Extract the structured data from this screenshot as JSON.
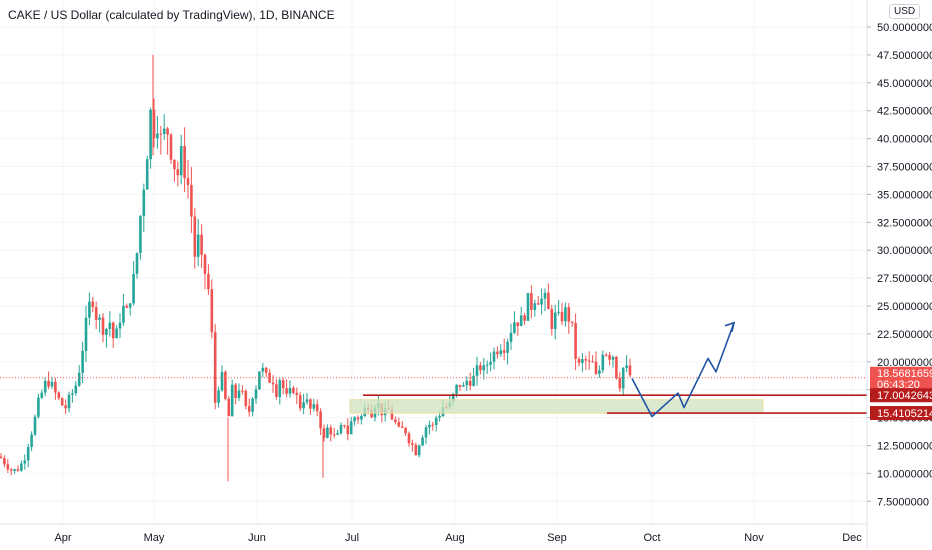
{
  "title": "CAKE / US Dollar (calculated by TradingView), 1D, BINANCE",
  "currency_badge": "USD",
  "colors": {
    "up": "#26a69a",
    "down": "#ef5350",
    "drawn_line": "#b71c1c",
    "forecast": "#1e53a6",
    "zone": "#cfe3bf",
    "price_tag": "#ef5350",
    "level_tag": "#b71c1c"
  },
  "price_tags": {
    "current": "18.5681659",
    "countdown": "06:43:20",
    "level_1": "17.0042643",
    "level_2": "15.4105214"
  },
  "chart_data": {
    "type": "candlestick",
    "title": "CAKE / US Dollar (calculated by TradingView), 1D, BINANCE",
    "xlabel": "",
    "ylabel": "USD",
    "ylim": [
      5.0,
      51.5
    ],
    "y_ticks": [
      "50.0000000",
      "47.5000000",
      "45.0000000",
      "42.5000000",
      "40.0000000",
      "37.5000000",
      "35.0000000",
      "32.5000000",
      "30.0000000",
      "27.5000000",
      "25.0000000",
      "22.5000000",
      "20.0000000",
      "17.5000000",
      "15.0000000",
      "12.5000000",
      "10.0000000",
      "7.5000000"
    ],
    "x_ticks": [
      "Apr",
      "May",
      "Jun",
      "Jul",
      "Aug",
      "Sep",
      "Oct",
      "Nov",
      "Dec"
    ],
    "current_price": 18.5681659,
    "horizontal_levels": [
      17.0042643,
      15.4105214
    ],
    "support_zone": [
      15.4,
      16.6
    ],
    "close_path": [
      [
        0,
        11.5
      ],
      [
        6,
        10.8
      ],
      [
        12,
        10.2
      ],
      [
        18,
        10.4
      ],
      [
        24,
        11.2
      ],
      [
        28,
        12.6
      ],
      [
        34,
        14.5
      ],
      [
        38,
        16.2
      ],
      [
        43,
        17.5
      ],
      [
        47,
        18.4
      ],
      [
        51,
        18.0
      ],
      [
        55,
        17.2
      ],
      [
        60,
        16.4
      ],
      [
        65,
        15.8
      ],
      [
        70,
        16.8
      ],
      [
        75,
        17.6
      ],
      [
        79,
        19.2
      ],
      [
        83,
        21.5
      ],
      [
        88,
        24.5
      ],
      [
        92,
        26.0
      ],
      [
        96,
        24.2
      ],
      [
        101,
        23.4
      ],
      [
        105,
        22.8
      ],
      [
        110,
        23.6
      ],
      [
        114,
        21.8
      ],
      [
        118,
        22.8
      ],
      [
        122,
        25.2
      ],
      [
        126,
        24.0
      ],
      [
        130,
        25.8
      ],
      [
        134,
        27.5
      ],
      [
        138,
        30.5
      ],
      [
        142,
        34.8
      ],
      [
        146,
        37.5
      ],
      [
        150,
        42.5
      ],
      [
        154,
        41.0
      ],
      [
        158,
        41.8
      ],
      [
        162,
        39.0
      ],
      [
        166,
        41.5
      ],
      [
        170,
        39.5
      ],
      [
        174,
        37.8
      ],
      [
        178,
        36.8
      ],
      [
        182,
        38.8
      ],
      [
        186,
        36.5
      ],
      [
        190,
        35.2
      ],
      [
        194,
        29.2
      ],
      [
        198,
        31.0
      ],
      [
        202,
        28.5
      ],
      [
        206,
        27.8
      ],
      [
        210,
        25.5
      ],
      [
        213,
        20.2
      ],
      [
        216,
        15.0
      ],
      [
        220,
        19.5
      ],
      [
        224,
        17.6
      ],
      [
        228,
        14.5
      ],
      [
        232,
        17.5
      ],
      [
        236,
        16.8
      ],
      [
        240,
        18.0
      ],
      [
        244,
        16.3
      ],
      [
        248,
        15.0
      ],
      [
        252,
        17.0
      ],
      [
        256,
        17.8
      ],
      [
        260,
        19.6
      ],
      [
        264,
        19.0
      ],
      [
        268,
        18.2
      ],
      [
        272,
        18.8
      ],
      [
        276,
        17.2
      ],
      [
        280,
        18.6
      ],
      [
        284,
        17.4
      ],
      [
        288,
        16.4
      ],
      [
        292,
        18.0
      ],
      [
        296,
        17.0
      ],
      [
        300,
        16.0
      ],
      [
        304,
        16.8
      ],
      [
        308,
        16.2
      ],
      [
        312,
        15.4
      ],
      [
        316,
        16.2
      ],
      [
        320,
        14.6
      ],
      [
        324,
        13.0
      ],
      [
        328,
        14.2
      ],
      [
        332,
        13.6
      ],
      [
        336,
        13.0
      ],
      [
        340,
        13.8
      ],
      [
        344,
        14.6
      ],
      [
        348,
        13.6
      ],
      [
        352,
        14.8
      ],
      [
        356,
        15.2
      ],
      [
        360,
        14.8
      ],
      [
        364,
        15.6
      ],
      [
        368,
        16.2
      ],
      [
        372,
        15.4
      ],
      [
        376,
        16.6
      ],
      [
        380,
        15.8
      ],
      [
        384,
        15.2
      ],
      [
        388,
        15.8
      ],
      [
        392,
        15.0
      ],
      [
        396,
        14.4
      ],
      [
        400,
        13.6
      ],
      [
        404,
        14.2
      ],
      [
        408,
        13.2
      ],
      [
        412,
        12.6
      ],
      [
        416,
        11.9
      ],
      [
        420,
        13.0
      ],
      [
        424,
        13.8
      ],
      [
        428,
        14.6
      ],
      [
        432,
        14.0
      ],
      [
        436,
        15.0
      ],
      [
        440,
        15.4
      ],
      [
        444,
        16.2
      ],
      [
        448,
        15.8
      ],
      [
        452,
        16.6
      ],
      [
        456,
        17.6
      ],
      [
        460,
        18.0
      ],
      [
        464,
        17.6
      ],
      [
        468,
        18.6
      ],
      [
        472,
        18.2
      ],
      [
        476,
        19.0
      ],
      [
        480,
        19.6
      ],
      [
        484,
        19.2
      ],
      [
        488,
        20.0
      ],
      [
        492,
        20.6
      ],
      [
        496,
        21.0
      ],
      [
        500,
        21.6
      ],
      [
        504,
        21.4
      ],
      [
        508,
        22.2
      ],
      [
        512,
        23.2
      ],
      [
        516,
        24.0
      ],
      [
        520,
        23.4
      ],
      [
        524,
        24.2
      ],
      [
        528,
        25.4
      ],
      [
        532,
        25.0
      ],
      [
        536,
        26.2
      ],
      [
        540,
        25.4
      ],
      [
        544,
        25.8
      ],
      [
        548,
        24.6
      ],
      [
        552,
        23.4
      ],
      [
        556,
        24.2
      ],
      [
        560,
        23.6
      ],
      [
        564,
        24.6
      ],
      [
        568,
        24.2
      ],
      [
        572,
        23.0
      ],
      [
        576,
        20.2
      ],
      [
        580,
        19.4
      ],
      [
        584,
        20.4
      ],
      [
        588,
        19.6
      ],
      [
        592,
        20.0
      ],
      [
        596,
        18.6
      ],
      [
        600,
        19.4
      ],
      [
        604,
        21.8
      ],
      [
        608,
        20.2
      ],
      [
        612,
        21.2
      ],
      [
        616,
        19.0
      ],
      [
        620,
        18.0
      ],
      [
        624,
        19.8
      ],
      [
        628,
        19.0
      ],
      [
        632,
        18.57
      ]
    ],
    "forecast_path": [
      [
        632,
        18.5
      ],
      [
        652,
        15.1
      ],
      [
        678,
        17.2
      ],
      [
        684,
        15.9
      ],
      [
        708,
        20.3
      ],
      [
        716,
        19.1
      ],
      [
        734,
        23.5
      ]
    ]
  }
}
